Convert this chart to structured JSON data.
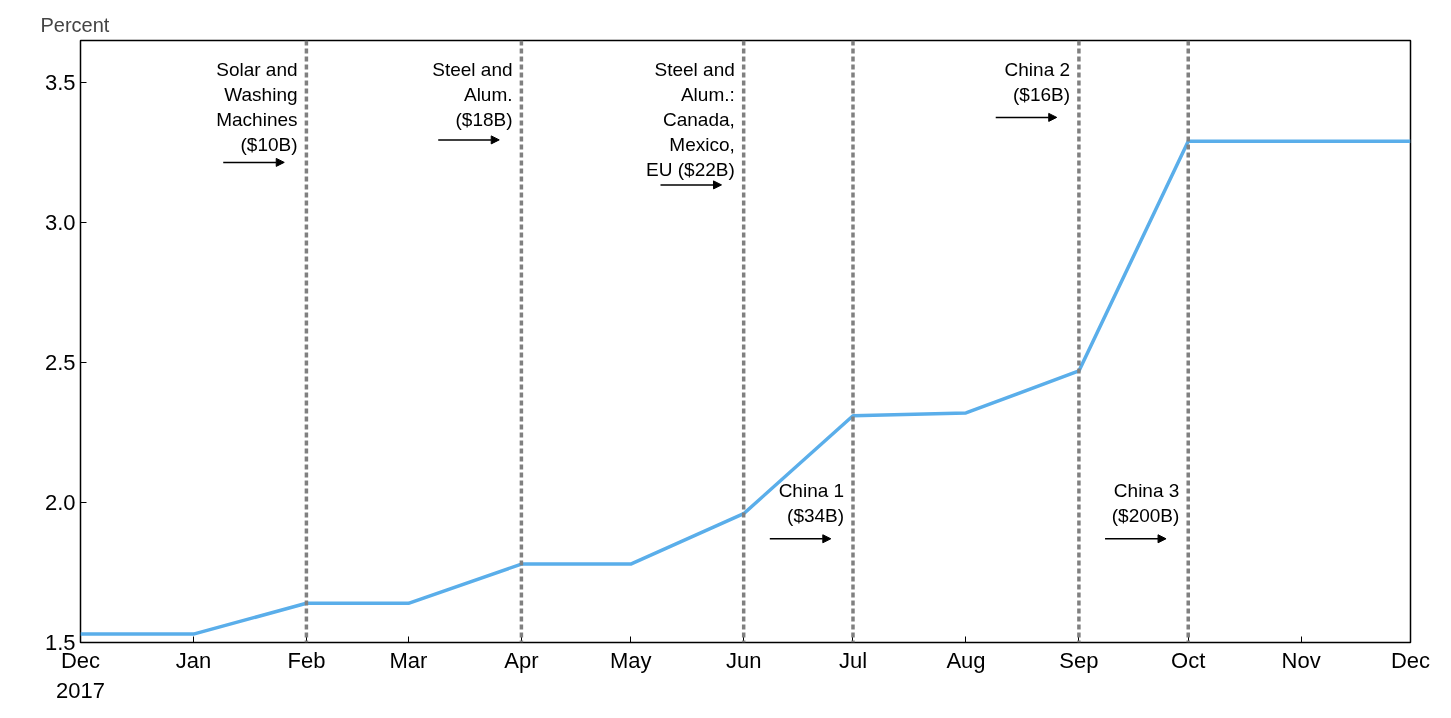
{
  "chart_data": {
    "type": "line",
    "ylabel": "Percent",
    "x": [
      "2017-12",
      "2018-01",
      "2018-02",
      "2018-03",
      "2018-04",
      "2018-05",
      "2018-06",
      "2018-07",
      "2018-08",
      "2018-09",
      "2018-10",
      "2018-11",
      "2018-12"
    ],
    "series": [
      {
        "color": "#5aaeea",
        "values": [
          1.53,
          1.53,
          1.64,
          1.64,
          1.78,
          1.78,
          1.96,
          2.31,
          2.32,
          2.47,
          3.29,
          3.29,
          3.29
        ]
      }
    ],
    "xlim": [
      "2017-12",
      "2018-12"
    ],
    "xticks": [
      {
        "value": "2017-12",
        "label": "Dec\n2017"
      },
      {
        "value": "2018-01",
        "label": "Jan"
      },
      {
        "value": "2018-02",
        "label": "Feb"
      },
      {
        "value": "2018-03",
        "label": "Mar"
      },
      {
        "value": "2018-04",
        "label": "Apr"
      },
      {
        "value": "2018-05",
        "label": "May"
      },
      {
        "value": "2018-06",
        "label": "Jun"
      },
      {
        "value": "2018-07",
        "label": "Jul"
      },
      {
        "value": "2018-08",
        "label": "Aug"
      },
      {
        "value": "2018-09",
        "label": "Sep"
      },
      {
        "value": "2018-10",
        "label": "Oct"
      },
      {
        "value": "2018-11",
        "label": "Nov"
      },
      {
        "value": "2018-12",
        "label": "Dec"
      }
    ],
    "ylim": [
      1.5,
      3.65
    ],
    "yticks": [
      {
        "value": 1.5,
        "label": "1.5"
      },
      {
        "value": 2.0,
        "label": "2.0"
      },
      {
        "value": 2.5,
        "label": "2.5"
      },
      {
        "value": 3.0,
        "label": "3.0"
      },
      {
        "value": 3.5,
        "label": "3.5"
      }
    ],
    "ref_lines": [
      {
        "axis": "x",
        "value": "2018-02",
        "label": "Solar and\nWashing\nMachines\n($10B)",
        "color": "#808080",
        "line_style": "dashed"
      },
      {
        "axis": "x",
        "value": "2018-04",
        "label": "Steel and\nAlum.\n($18B)",
        "color": "#808080",
        "line_style": "dashed"
      },
      {
        "axis": "x",
        "value": "2018-06",
        "label": "Steel and\nAlum.:\nCanada,\nMexico,\nEU ($22B)",
        "color": "#808080",
        "line_style": "dashed"
      },
      {
        "axis": "x",
        "value": "2018-07",
        "label": "China 1\n($34B)",
        "color": "#808080",
        "line_style": "dashed"
      },
      {
        "axis": "x",
        "value": "2018-09",
        "label": "China 2\n($16B)",
        "color": "#808080",
        "line_style": "dashed"
      },
      {
        "axis": "x",
        "value": "2018-10",
        "label": "China 3\n($200B)",
        "color": "#808080",
        "line_style": "dashed"
      }
    ],
    "grid": false,
    "marker": "none",
    "line_style": "solid"
  }
}
